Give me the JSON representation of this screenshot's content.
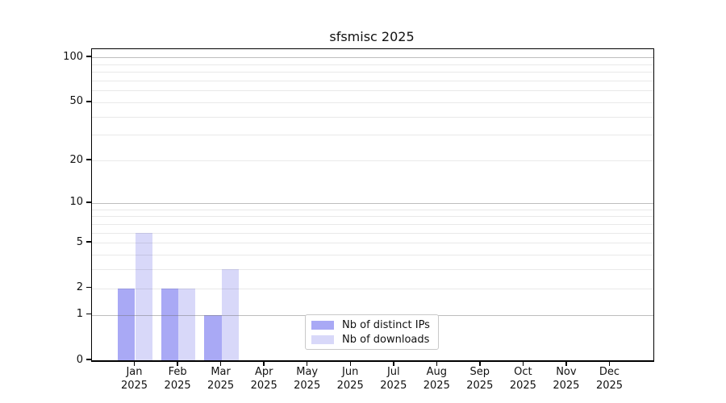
{
  "title": "sfsmisc 2025",
  "chart_data": {
    "type": "bar",
    "title": "sfsmisc 2025",
    "categories": [
      "Jan 2025",
      "Feb 2025",
      "Mar 2025",
      "Apr 2025",
      "May 2025",
      "Jun 2025",
      "Jul 2025",
      "Aug 2025",
      "Sep 2025",
      "Oct 2025",
      "Nov 2025",
      "Dec 2025"
    ],
    "series": [
      {
        "name": "Nb of distinct IPs",
        "color": "#a9a9f5",
        "values": [
          2,
          2,
          1,
          0,
          0,
          0,
          0,
          0,
          0,
          0,
          0,
          0
        ]
      },
      {
        "name": "Nb of downloads",
        "color": "#d8d8f9",
        "values": [
          6,
          2,
          3,
          0,
          0,
          0,
          0,
          0,
          0,
          0,
          0,
          0
        ]
      }
    ],
    "xlabel": "",
    "ylabel": "",
    "yscale": "log1p",
    "ylim": [
      0,
      113
    ],
    "yticks": [
      100,
      50,
      20,
      10,
      5,
      2,
      1,
      0
    ],
    "major_gridlines": [
      1,
      10,
      100
    ],
    "minor_gridlines": [
      2,
      3,
      4,
      5,
      6,
      7,
      8,
      9,
      20,
      30,
      40,
      50,
      60,
      70,
      80,
      90
    ],
    "grid": true,
    "legend_position": "lower center"
  }
}
